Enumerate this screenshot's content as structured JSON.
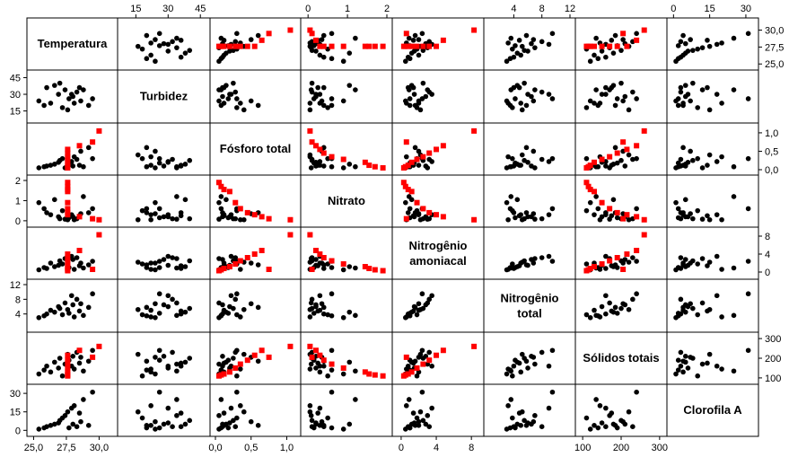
{
  "chart_data": {
    "type": "scatter",
    "title": "",
    "grid": false,
    "colors": {
      "primary": "#000000",
      "highlight": "#ff0000",
      "frame": "#000000",
      "background": "#ffffff"
    },
    "variables": [
      {
        "key": "temp",
        "label": "Temperatura",
        "range": [
          24.9,
          31.0
        ]
      },
      {
        "key": "turb",
        "label": "Turbidez",
        "range": [
          9,
          47
        ]
      },
      {
        "key": "pt",
        "label": "Fósforo total",
        "range": [
          0,
          1.12
        ]
      },
      {
        "key": "no3",
        "label": "Nitrato",
        "range": [
          -0.05,
          2.0
        ]
      },
      {
        "key": "nh",
        "label": "Nitrogênio amoniacal",
        "range": [
          -0.4,
          8.8
        ]
      },
      {
        "key": "nt",
        "label": "Nitrogênio total",
        "range": [
          0.5,
          12.0
        ]
      },
      {
        "key": "st",
        "label": "Sólidos totais",
        "range": [
          95,
          305
        ]
      },
      {
        "key": "cla",
        "label": "Clorofila A",
        "range": [
          -0.5,
          33.0
        ]
      }
    ],
    "axis_ticks": {
      "top": [
        {
          "var": 1,
          "values": [
            15,
            30,
            45
          ],
          "labels": [
            "15",
            "30",
            "45"
          ]
        },
        {
          "var": 3,
          "values": [
            0,
            1,
            2
          ],
          "labels": [
            "0",
            "1",
            "2"
          ]
        },
        {
          "var": 5,
          "values": [
            4,
            8,
            12
          ],
          "labels": [
            "4",
            "8",
            "12"
          ]
        },
        {
          "var": 7,
          "values": [
            0,
            15,
            30
          ],
          "labels": [
            "0",
            "15",
            "30"
          ]
        }
      ],
      "bottom": [
        {
          "var": 0,
          "values": [
            25.0,
            27.5,
            30.0
          ],
          "labels": [
            "25,0",
            "27,5",
            "30,0"
          ]
        },
        {
          "var": 2,
          "values": [
            0.0,
            0.5,
            1.0
          ],
          "labels": [
            "0,0",
            "0,5",
            "1,0"
          ]
        },
        {
          "var": 4,
          "values": [
            0,
            4,
            8
          ],
          "labels": [
            "0",
            "4",
            "8"
          ]
        },
        {
          "var": 6,
          "values": [
            100,
            200,
            300
          ],
          "labels": [
            "100",
            "200",
            "300"
          ]
        }
      ],
      "left": [
        {
          "var": 1,
          "values": [
            15,
            30,
            45
          ],
          "labels": [
            "15",
            "30",
            "45"
          ]
        },
        {
          "var": 3,
          "values": [
            0,
            1,
            2
          ],
          "labels": [
            "0",
            "1",
            "2"
          ]
        },
        {
          "var": 5,
          "values": [
            4,
            8,
            12
          ],
          "labels": [
            "4",
            "8",
            "12"
          ]
        },
        {
          "var": 7,
          "values": [
            0,
            15,
            30
          ],
          "labels": [
            "0",
            "15",
            "30"
          ]
        }
      ],
      "right": [
        {
          "var": 0,
          "values": [
            25.0,
            27.5,
            30.0
          ],
          "labels": [
            "25,0",
            "27,5",
            "30,0"
          ]
        },
        {
          "var": 2,
          "values": [
            0.0,
            0.5,
            1.0
          ],
          "labels": [
            "0,0",
            "0,5",
            "1,0"
          ]
        },
        {
          "var": 4,
          "values": [
            0,
            4,
            8
          ],
          "labels": [
            "0",
            "4",
            "8"
          ]
        },
        {
          "var": 6,
          "values": [
            100,
            200,
            300
          ],
          "labels": [
            "100",
            "200",
            "300"
          ]
        }
      ]
    },
    "series": [
      {
        "name": "",
        "color": "#000000",
        "temp": [
          25.4,
          25.8,
          26.0,
          26.3,
          26.6,
          26.9,
          27.0,
          27.2,
          27.4,
          27.6,
          27.7,
          27.9,
          28.0,
          28.1,
          28.3,
          28.5,
          28.6,
          28.8,
          29.2,
          29.5
        ],
        "turb": [
          24,
          20,
          36,
          22,
          38,
          30,
          40,
          18,
          34,
          16,
          26,
          30,
          28,
          22,
          32,
          36,
          24,
          34,
          20,
          26
        ],
        "pt": [
          0.05,
          0.08,
          0.1,
          0.12,
          0.15,
          0.2,
          0.25,
          0.3,
          0.05,
          0.4,
          0.18,
          0.22,
          0.1,
          0.35,
          0.28,
          0.12,
          0.5,
          0.08,
          0.6,
          0.3
        ],
        "no3": [
          0.9,
          0.6,
          0.4,
          0.3,
          1.05,
          0.2,
          0.1,
          0.5,
          0.08,
          0.05,
          0.15,
          0.3,
          0.2,
          0.05,
          0.1,
          0.25,
          0.35,
          1.2,
          0.4,
          0.6
        ],
        "nh": [
          0.5,
          1.0,
          0.8,
          2.0,
          1.2,
          1.5,
          2.5,
          1.8,
          3.0,
          2.2,
          1.0,
          3.5,
          2.8,
          0.6,
          3.2,
          1.4,
          2.0,
          0.9,
          1.6,
          2.4
        ],
        "nt": [
          3.0,
          3.5,
          4.0,
          5.0,
          4.5,
          6.0,
          5.5,
          3.8,
          7.0,
          5.2,
          4.2,
          9.0,
          6.5,
          3.2,
          8.0,
          4.8,
          6.8,
          3.6,
          5.8,
          9.5
        ],
        "st": [
          120,
          140,
          160,
          130,
          180,
          150,
          200,
          110,
          170,
          220,
          190,
          160,
          210,
          145,
          230,
          175,
          205,
          135,
          185,
          240
        ],
        "cla": [
          1,
          2,
          3,
          4,
          5,
          6,
          8,
          10,
          12,
          15,
          2,
          18,
          5,
          20,
          3,
          14,
          7,
          25,
          4,
          31
        ]
      },
      {
        "name": "",
        "color": "#ff0000",
        "temp": [
          27.6,
          27.6,
          27.6,
          27.6,
          27.6,
          27.6,
          27.6,
          27.6,
          28.5,
          29.5,
          30.0
        ],
        "turb": [
          null,
          null,
          null,
          null,
          null,
          null,
          null,
          null,
          null,
          null,
          null
        ],
        "pt": [
          0.05,
          0.08,
          0.12,
          0.2,
          0.28,
          0.35,
          0.45,
          0.55,
          0.65,
          0.75,
          1.05
        ],
        "no3": [
          1.9,
          1.7,
          1.55,
          1.45,
          0.9,
          0.6,
          0.4,
          0.3,
          0.2,
          0.1,
          0.05
        ],
        "nh": [
          0.3,
          0.5,
          0.8,
          1.2,
          1.8,
          2.5,
          3.2,
          4.0,
          4.8,
          0.6,
          8.3
        ],
        "nt": [
          null,
          null,
          null,
          null,
          null,
          null,
          null,
          null,
          null,
          null,
          null
        ],
        "st": [
          110,
          115,
          120,
          130,
          150,
          170,
          190,
          215,
          240,
          205,
          260
        ],
        "cla": [
          null,
          null,
          null,
          null,
          null,
          null,
          null,
          null,
          null,
          null,
          null
        ]
      }
    ]
  }
}
